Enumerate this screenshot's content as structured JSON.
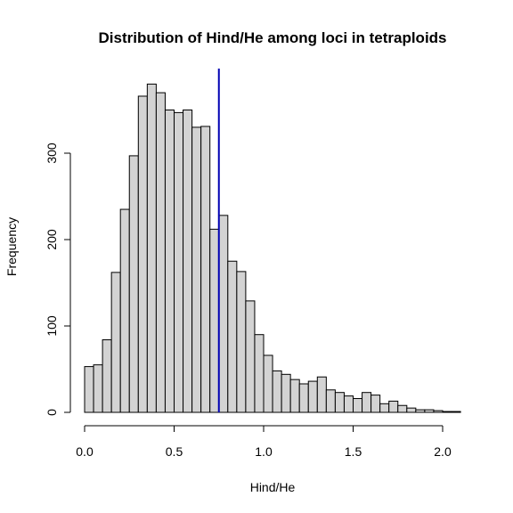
{
  "chart_data": {
    "type": "bar",
    "title": "Distribution of Hind/He among loci in tetraploids",
    "xlabel": "Hind/He",
    "ylabel": "Frequency",
    "bin_width": 0.05,
    "bin_start": 0.0,
    "values": [
      53,
      55,
      84,
      162,
      235,
      297,
      366,
      380,
      370,
      350,
      347,
      350,
      330,
      331,
      212,
      228,
      175,
      163,
      129,
      90,
      66,
      48,
      44,
      38,
      33,
      36,
      41,
      26,
      23,
      19,
      16,
      23,
      20,
      10,
      13,
      8,
      5,
      3,
      3,
      2,
      1,
      1
    ],
    "xlim": [
      0.0,
      2.1
    ],
    "ylim": [
      0,
      400
    ],
    "x_ticks": [
      {
        "value": 0.0,
        "label": "0.0"
      },
      {
        "value": 0.5,
        "label": "0.5"
      },
      {
        "value": 1.0,
        "label": "1.0"
      },
      {
        "value": 1.5,
        "label": "1.5"
      },
      {
        "value": 2.0,
        "label": "2.0"
      }
    ],
    "y_ticks": [
      {
        "value": 0,
        "label": "0"
      },
      {
        "value": 100,
        "label": "100"
      },
      {
        "value": 200,
        "label": "200"
      },
      {
        "value": 300,
        "label": "300"
      }
    ],
    "reference_line": {
      "x": 0.75,
      "color": "#0000b3"
    },
    "bar_color": "#d3d3d3",
    "grid": false
  }
}
